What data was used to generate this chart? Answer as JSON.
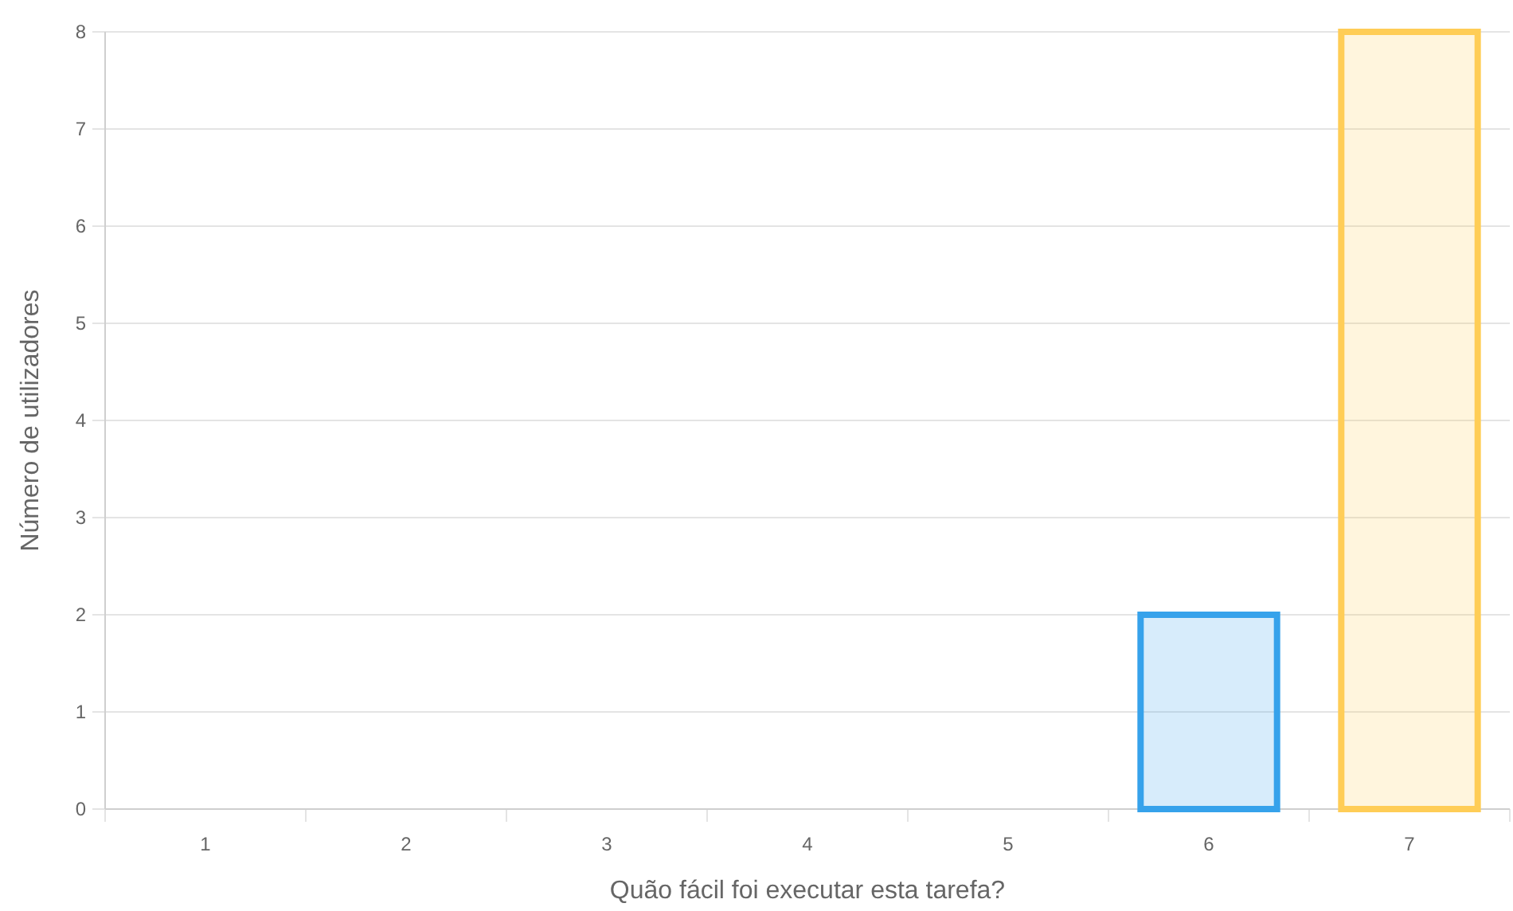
{
  "chart_data": {
    "type": "bar",
    "xlabel": "Quão fácil foi executar esta tarefa?",
    "ylabel": "Número de utilizadores",
    "categories": [
      "1",
      "2",
      "3",
      "4",
      "5",
      "6",
      "7"
    ],
    "values": [
      0,
      0,
      0,
      0,
      0,
      2,
      8
    ],
    "colors": [
      "#ff6384",
      "#ff9f40",
      "#4bc0c0",
      "#9966ff",
      "#c9cbcf",
      "#36a2eb",
      "#ffcd56"
    ],
    "ylim": [
      0,
      8
    ],
    "yticks": [
      0,
      1,
      2,
      3,
      4,
      5,
      6,
      7,
      8
    ],
    "grid": "y"
  }
}
